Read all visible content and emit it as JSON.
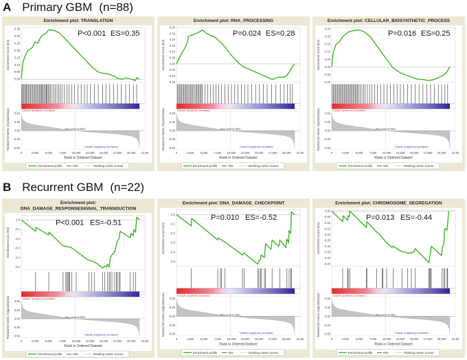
{
  "section_a": {
    "letter": "A",
    "title": "Primary GBM",
    "n": "(n=88)"
  },
  "section_b": {
    "letter": "B",
    "title": "Recurrent GBM",
    "n": "(n=22)"
  },
  "common": {
    "es_ylabel": "Enrichment score (ES)",
    "metric_ylabel": "Ranked list metric (Signal2Noise)",
    "xlabel": "Rank in Ordered Dataset",
    "class_a": "'ClassA' (positively correlated)",
    "class_b": "'ClassB' (negatively correlated)",
    "legend": [
      "Enrichment profile",
      "Hits",
      "Ranking metric scores"
    ],
    "xticks": [
      "0",
      "2,500",
      "5,000",
      "7,500",
      "10,000",
      "12,500",
      "15,000",
      "17,500",
      "20,000",
      "22,50"
    ],
    "metric_ticks": [
      "0.50",
      "0.25",
      "0.00",
      "-0.25",
      "-0.50"
    ],
    "colors": {
      "es_line": "#3db526",
      "hits": "#111111",
      "metric": "#c4c4c4",
      "class_a": "#e0343a",
      "class_b": "#3a3ab8",
      "frame": "#ece8d6"
    }
  },
  "ranked_metric_profile": {
    "x": [
      0,
      100,
      400,
      1000,
      2500,
      5000,
      7500,
      9800,
      12500,
      15000,
      17500,
      19500,
      20500,
      21000,
      21400,
      21500
    ],
    "y": [
      0.5,
      0.4,
      0.3,
      0.23,
      0.17,
      0.11,
      0.05,
      0.0,
      -0.04,
      -0.07,
      -0.1,
      -0.14,
      -0.18,
      -0.23,
      -0.35,
      -0.5
    ]
  },
  "chart_data": [
    {
      "type": "line",
      "title": [
        "Enrichment plot: TRANSLATION"
      ],
      "p_text": "P<0.001",
      "es_text": "ES=0.35",
      "ylim": [
        -0.02,
        0.36
      ],
      "yticks": [
        "0.35",
        "0.30",
        "0.25",
        "0.20",
        "0.15",
        "0.10",
        "0.05",
        "0.00"
      ],
      "ytick_values": [
        0.35,
        0.3,
        0.25,
        0.2,
        0.15,
        0.1,
        0.05,
        0.0
      ],
      "zero_cross": "Zero cross at 9802",
      "zero_cross_rank": 9802,
      "x": [
        0,
        300,
        800,
        1200,
        2000,
        2500,
        3000,
        3500,
        4000,
        4500,
        5000,
        6000,
        7000,
        8000,
        9000,
        10000,
        11000,
        12000,
        13000,
        14000,
        15000,
        16000,
        17000,
        17500,
        18500,
        19000,
        20000,
        20800,
        21000,
        21500
      ],
      "y": [
        0,
        0.12,
        0.17,
        0.2,
        0.22,
        0.26,
        0.25,
        0.29,
        0.31,
        0.32,
        0.345,
        0.34,
        0.32,
        0.28,
        0.24,
        0.2,
        0.16,
        0.12,
        0.08,
        0.05,
        0.04,
        0.035,
        0.02,
        0.005,
        0.0,
        0.01,
        0.0,
        -0.01,
        0.01,
        0.0
      ],
      "hits": [
        100,
        250,
        400,
        600,
        800,
        900,
        1100,
        1300,
        1500,
        1700,
        1900,
        2100,
        2300,
        2500,
        2700,
        2900,
        3100,
        3300,
        3500,
        3650,
        3800,
        4000,
        4200,
        4400,
        4550,
        4700,
        4900,
        5100,
        5300,
        5600,
        5900,
        6200,
        6500,
        6800,
        7100,
        7400,
        7800,
        8300,
        8700,
        9200,
        9700,
        10300,
        10900,
        11500,
        12000,
        12600,
        13300,
        14000,
        14800,
        15400,
        16100,
        16800,
        17500,
        18200,
        19000,
        19700,
        20400,
        21000
      ]
    },
    {
      "type": "line",
      "title": [
        "Enrichment plot: RNA_PROCESSING"
      ],
      "p_text": "P=0.024",
      "es_text": "ES=0.28",
      "ylim": [
        -0.15,
        0.3
      ],
      "yticks": [
        "0.30",
        "0.25",
        "0.20",
        "0.15",
        "0.10",
        "0.05",
        "0.00",
        "-0.05",
        "-0.10",
        "-0.15"
      ],
      "ytick_values": [
        0.3,
        0.25,
        0.2,
        0.15,
        0.1,
        0.05,
        0.0,
        -0.05,
        -0.1,
        -0.15
      ],
      "zero_cross": "Zero cross at 9802",
      "zero_cross_rank": 9802,
      "x": [
        0,
        500,
        1000,
        1500,
        2000,
        2200,
        3000,
        4000,
        4700,
        5500,
        7000,
        8000,
        9000,
        10000,
        11000,
        12000,
        13500,
        15000,
        16000,
        17000,
        17500,
        18500,
        19500,
        20000,
        20500,
        21000,
        21500
      ],
      "y": [
        0,
        0.05,
        0.09,
        0.13,
        0.18,
        0.23,
        0.24,
        0.26,
        0.28,
        0.25,
        0.22,
        0.18,
        0.13,
        0.07,
        0.02,
        -0.02,
        -0.05,
        -0.08,
        -0.1,
        -0.12,
        -0.13,
        -0.11,
        -0.11,
        -0.1,
        -0.07,
        -0.03,
        0.0
      ],
      "hits": [
        150,
        350,
        550,
        750,
        950,
        1150,
        1350,
        1550,
        1750,
        1950,
        2150,
        2400,
        2600,
        2800,
        3000,
        3250,
        3500,
        3700,
        3900,
        4100,
        4300,
        4500,
        4700,
        5200,
        5700,
        6200,
        6700,
        7200,
        7700,
        8200,
        8800,
        9400,
        10000,
        10600,
        11200,
        11800,
        12400,
        13000,
        13700,
        14400,
        15100,
        15800,
        16500,
        17300,
        18100,
        18900,
        19600,
        20200,
        20700,
        21100
      ]
    },
    {
      "type": "line",
      "title": [
        "Enrichment plot: CELLULAR_BIOSYNTHETIC_PROCESS"
      ],
      "p_text": "P=0.016",
      "es_text": "ES=0.25",
      "ylim": [
        -0.1,
        0.26
      ],
      "yticks": [
        "0.25",
        "0.20",
        "0.15",
        "0.10",
        "0.05",
        "0.00",
        "-0.05",
        "-0.10"
      ],
      "ytick_values": [
        0.25,
        0.2,
        0.15,
        0.1,
        0.05,
        0.0,
        -0.05,
        -0.1
      ],
      "zero_cross": "Zero cross at 9802",
      "zero_cross_rank": 9802,
      "x": [
        0,
        300,
        800,
        1500,
        2000,
        3000,
        4000,
        5000,
        6000,
        7000,
        8000,
        9000,
        10000,
        11000,
        12500,
        14000,
        15500,
        17000,
        17500,
        18500,
        19500,
        20500,
        21000,
        21500
      ],
      "y": [
        0,
        0.1,
        0.15,
        0.17,
        0.2,
        0.23,
        0.24,
        0.245,
        0.23,
        0.2,
        0.15,
        0.1,
        0.05,
        0.0,
        -0.04,
        -0.06,
        -0.08,
        -0.085,
        -0.09,
        -0.085,
        -0.07,
        -0.05,
        -0.03,
        0.0
      ],
      "hits": [
        100,
        300,
        500,
        700,
        900,
        1100,
        1300,
        1500,
        1700,
        1900,
        2100,
        2300,
        2500,
        2700,
        2900,
        3100,
        3300,
        3500,
        3700,
        3900,
        4100,
        4300,
        4500,
        4700,
        4900,
        5200,
        5500,
        5800,
        6100,
        6500,
        6900,
        7300,
        7800,
        8300,
        8900,
        9500,
        10100,
        10700,
        11300,
        11900,
        12500,
        13100,
        13800,
        14500,
        15200,
        15900,
        16600,
        17300,
        18000,
        18700,
        19400,
        20000,
        20600,
        21100
      ]
    },
    {
      "type": "line",
      "title": [
        "Enrichment plot:",
        "DNA_DAMAGE_RESPONSESIGNAL_TRANSDUCTION"
      ],
      "p_text": "P<0.001",
      "es_text": "ES=-0.51",
      "ylim": [
        -0.53,
        0.05
      ],
      "yticks": [
        "0.0",
        "-0.1",
        "-0.2",
        "-0.3",
        "-0.4",
        "-0.5"
      ],
      "ytick_values": [
        0.0,
        -0.1,
        -0.2,
        -0.3,
        -0.4,
        -0.5
      ],
      "zero_cross": "Zero cross at 9802",
      "zero_cross_rank": 9802,
      "x": [
        0,
        2600,
        2650,
        5000,
        5050,
        7500,
        8000,
        9000,
        10000,
        12000,
        13000,
        14000,
        14800,
        15200,
        15500,
        15700,
        16000,
        16200,
        16500,
        17000,
        17500,
        17800,
        18000,
        19800,
        20000,
        20400,
        20500,
        20800,
        21000,
        21500
      ],
      "y": [
        0,
        -0.12,
        -0.08,
        -0.16,
        -0.13,
        -0.27,
        -0.28,
        -0.29,
        -0.33,
        -0.42,
        -0.44,
        -0.47,
        -0.51,
        -0.49,
        -0.5,
        -0.47,
        -0.5,
        -0.4,
        -0.37,
        -0.34,
        -0.22,
        -0.2,
        -0.12,
        -0.19,
        -0.14,
        -0.17,
        -0.1,
        -0.13,
        0.03,
        0.0
      ],
      "hits": [
        2600,
        5000,
        7600,
        8100,
        8300,
        8500,
        8700,
        8800,
        9200,
        10000,
        12300,
        12800,
        13300,
        14800,
        15200,
        15700,
        16000,
        16200,
        16500,
        17000,
        17300,
        17500,
        17800,
        18000,
        19800,
        20400,
        20800
      ]
    },
    {
      "type": "line",
      "title": [
        "Enrichment plot: DNA_DAMAGE_CHECKPOINT"
      ],
      "p_text": "P=0.010",
      "es_text": "ES=-0.52",
      "ylim": [
        -0.55,
        0.05
      ],
      "yticks": [
        "0.0",
        "-0.1",
        "-0.2",
        "-0.3",
        "-0.4",
        "-0.5"
      ],
      "ytick_values": [
        0.0,
        -0.1,
        -0.2,
        -0.3,
        -0.4,
        -0.5
      ],
      "zero_cross": "Zero cross at 9801",
      "zero_cross_rank": 9801,
      "x": [
        0,
        2700,
        2750,
        7500,
        7600,
        8500,
        12000,
        12300,
        14800,
        15000,
        15300,
        15400,
        16000,
        16200,
        17200,
        17400,
        18600,
        18800,
        19900,
        20100,
        20400,
        20500,
        20800,
        20900,
        21500
      ],
      "y": [
        0,
        -0.12,
        -0.04,
        -0.27,
        -0.25,
        -0.28,
        -0.43,
        -0.41,
        -0.53,
        -0.49,
        -0.48,
        -0.43,
        -0.46,
        -0.31,
        -0.37,
        -0.27,
        -0.34,
        -0.27,
        -0.35,
        -0.26,
        -0.3,
        -0.17,
        -0.2,
        0.03,
        0.0
      ],
      "hits": [
        2700,
        7500,
        8000,
        8200,
        8800,
        12000,
        12300,
        14800,
        15000,
        15300,
        15400,
        16000,
        16200,
        17400,
        18800,
        20100,
        20500,
        20800,
        20900
      ]
    },
    {
      "type": "line",
      "title": [
        "Enrichment plot: CHROMOSOME_SEGREGATION"
      ],
      "p_text": "P=0.013",
      "es_text": "ES=-0.44",
      "ylim": [
        -0.47,
        0.01
      ],
      "yticks": [
        "0.00",
        "-0.05",
        "-0.10",
        "-0.15",
        "-0.20",
        "-0.25",
        "-0.30",
        "-0.35",
        "-0.40",
        "-0.45"
      ],
      "ytick_values": [
        0.0,
        -0.05,
        -0.1,
        -0.15,
        -0.2,
        -0.25,
        -0.3,
        -0.35,
        -0.4,
        -0.45
      ],
      "zero_cross": "Zero cross at 9801",
      "zero_cross_rank": 9801,
      "x": [
        0,
        2000,
        2100,
        2900,
        3000,
        3200,
        3300,
        6300,
        6400,
        8000,
        8500,
        10000,
        11000,
        11200,
        12500,
        14000,
        15000,
        15200,
        17700,
        17800,
        18000,
        18100,
        20000,
        20100,
        20400,
        20600,
        21000,
        21300
      ],
      "y": [
        0,
        -0.09,
        -0.04,
        -0.08,
        -0.04,
        -0.05,
        0.0,
        -0.14,
        -0.09,
        -0.17,
        -0.19,
        -0.27,
        -0.31,
        -0.3,
        -0.34,
        -0.36,
        -0.35,
        -0.32,
        -0.44,
        -0.4,
        -0.36,
        -0.3,
        -0.38,
        -0.32,
        -0.28,
        -0.15,
        -0.16,
        0.0
      ],
      "hits": [
        2000,
        2900,
        3000,
        3300,
        6300,
        6400,
        8200,
        9200,
        9300,
        10000,
        11200,
        12800,
        13800,
        14500,
        15200,
        17700,
        17800,
        18000,
        18100,
        20100,
        20400,
        20600,
        21000,
        21100
      ]
    }
  ]
}
